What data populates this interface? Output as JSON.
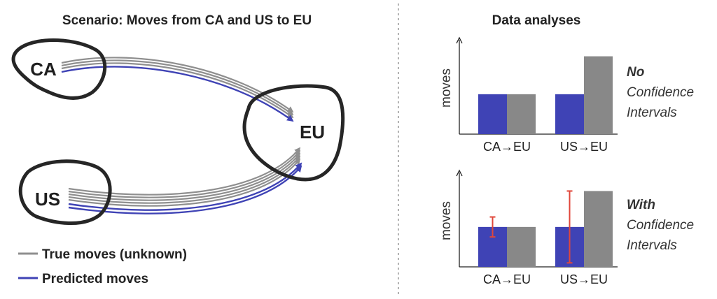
{
  "diagram": {
    "title": "Scenario: Moves from CA and US to EU",
    "regions": {
      "ca": "CA",
      "us": "US",
      "eu": "EU"
    },
    "legend": {
      "true_label": "True moves (unknown)",
      "pred_label": "Predicted moves"
    },
    "colors": {
      "true": "#8f8f8f",
      "predicted": "#3f43b5",
      "outline": "#262626"
    }
  },
  "analyses": {
    "title": "Data analyses",
    "colors": {
      "predicted": "#3f43b5",
      "true": "#888888",
      "error": "#e0463a"
    },
    "panels": [
      {
        "ylabel": "moves",
        "side_line1": "No",
        "side_line2": "Confidence",
        "side_line3": "Intervals"
      },
      {
        "ylabel": "moves",
        "side_line1": "With",
        "side_line2": "Confidence",
        "side_line3": "Intervals"
      }
    ]
  },
  "chart_data": [
    {
      "type": "bar",
      "categories": [
        "CA→EU",
        "US→EU"
      ],
      "series": [
        {
          "values": [
            1.0,
            1.0
          ]
        },
        {
          "values": [
            1.0,
            1.95
          ]
        }
      ],
      "ylim": [
        0,
        2.1
      ],
      "ylabel": "moves",
      "error_bars": null
    },
    {
      "type": "bar",
      "categories": [
        "CA→EU",
        "US→EU"
      ],
      "series": [
        {
          "values": [
            1.0,
            1.0
          ]
        },
        {
          "values": [
            1.0,
            1.9
          ]
        }
      ],
      "ylim": [
        0,
        2.1
      ],
      "ylabel": "moves",
      "error_bars": [
        {
          "category": "CA→EU",
          "low": 0.75,
          "high": 1.25
        },
        {
          "category": "US→EU",
          "low": 0.1,
          "high": 1.9
        }
      ]
    }
  ]
}
